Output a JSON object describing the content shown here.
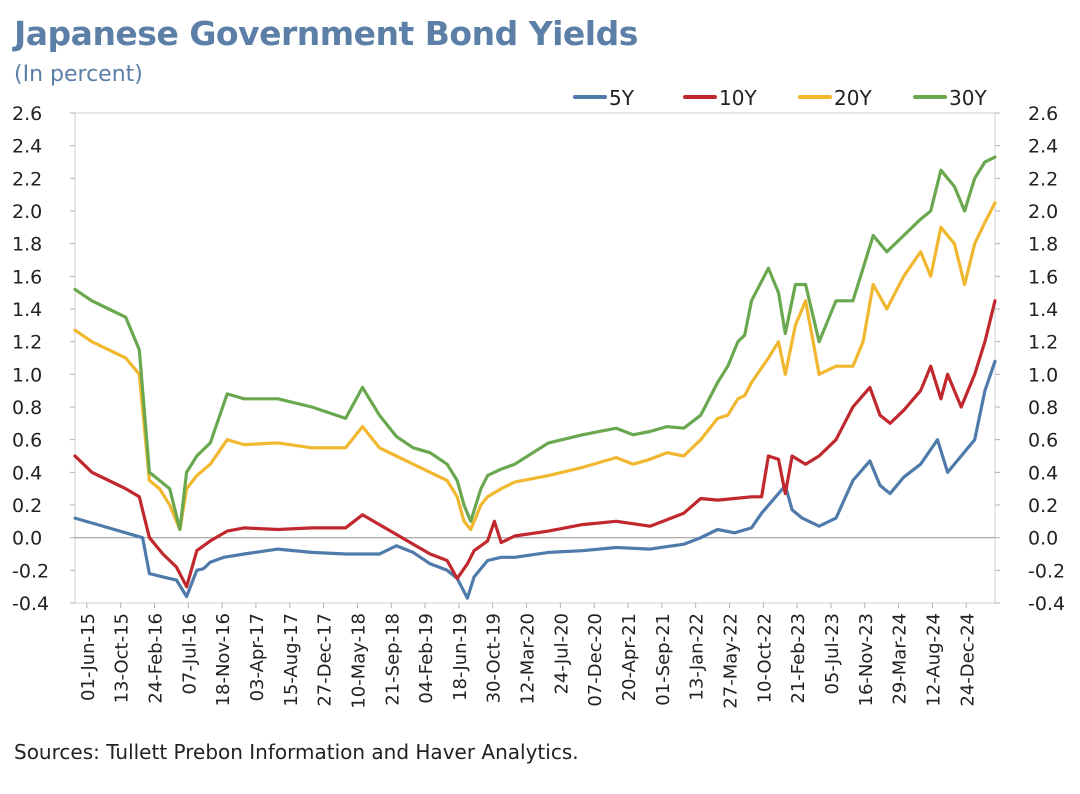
{
  "header": {
    "title": "Japanese Government Bond Yields",
    "subtitle": "(In percent)"
  },
  "footer": {
    "source": "Sources: Tullett Prebon Information and Haver Analytics."
  },
  "chart_data": {
    "type": "line",
    "title": "Japanese Government Bond Yields",
    "subtitle": "(In percent)",
    "xlabel": "",
    "ylabel": "",
    "ylim": [
      -0.4,
      2.6
    ],
    "yticks": [
      -0.4,
      -0.2,
      0.0,
      0.2,
      0.4,
      0.6,
      0.8,
      1.0,
      1.2,
      1.4,
      1.6,
      1.8,
      2.0,
      2.2,
      2.4,
      2.6
    ],
    "ytick_labels": [
      "-0.4",
      "-0.2",
      "0.0",
      "0.2",
      "0.4",
      "0.6",
      "0.8",
      "1.0",
      "1.2",
      "1.4",
      "1.6",
      "1.8",
      "2.0",
      "2.2",
      "2.4",
      "2.6"
    ],
    "x_tick_labels": [
      "01-Jun-15",
      "13-Oct-15",
      "24-Feb-16",
      "07-Jul-16",
      "18-Nov-16",
      "03-Apr-17",
      "15-Aug-17",
      "27-Dec-17",
      "10-May-18",
      "21-Sep-18",
      "04-Feb-19",
      "18-Jun-19",
      "30-Oct-19",
      "12-Mar-20",
      "24-Jul-20",
      "07-Dec-20",
      "20-Apr-21",
      "01-Sep-21",
      "13-Jan-22",
      "27-May-22",
      "10-Oct-22",
      "21-Feb-23",
      "05-Jul-23",
      "16-Nov-23",
      "29-Mar-24",
      "12-Aug-24",
      "24-Dec-24"
    ],
    "x_range": [
      0,
      27.2
    ],
    "legend_position": "top-right",
    "grid": false,
    "series": [
      {
        "name": "5Y",
        "color": "#4f7bab",
        "x": [
          0,
          0.5,
          1,
          1.5,
          2,
          2.2,
          2.6,
          3,
          3.3,
          3.6,
          3.8,
          4,
          4.4,
          5,
          6,
          7,
          8,
          9,
          9.5,
          10,
          10.5,
          11,
          11.3,
          11.6,
          11.8,
          12.2,
          12.6,
          13,
          14,
          15,
          16,
          17,
          18,
          18.5,
          19,
          19.5,
          20,
          20.3,
          20.8,
          21,
          21.2,
          21.5,
          22,
          22.5,
          23,
          23.5,
          23.8,
          24.1,
          24.5,
          25,
          25.5,
          25.8,
          26.2,
          26.6,
          26.9,
          27.2
        ],
        "values": [
          0.12,
          0.09,
          0.06,
          0.03,
          0.0,
          -0.22,
          -0.24,
          -0.26,
          -0.36,
          -0.2,
          -0.19,
          -0.15,
          -0.12,
          -0.1,
          -0.07,
          -0.09,
          -0.1,
          -0.1,
          -0.05,
          -0.09,
          -0.16,
          -0.2,
          -0.25,
          -0.37,
          -0.24,
          -0.14,
          -0.12,
          -0.12,
          -0.09,
          -0.08,
          -0.06,
          -0.07,
          -0.04,
          0.0,
          0.05,
          0.03,
          0.06,
          0.15,
          0.27,
          0.32,
          0.17,
          0.12,
          0.07,
          0.12,
          0.35,
          0.47,
          0.32,
          0.27,
          0.37,
          0.45,
          0.6,
          0.4,
          0.5,
          0.6,
          0.9,
          1.08
        ]
      },
      {
        "name": "10Y",
        "color": "#c0282d",
        "x": [
          0,
          0.5,
          1,
          1.5,
          1.9,
          2.2,
          2.6,
          3,
          3.3,
          3.6,
          3.8,
          4,
          4.5,
          5,
          6,
          7,
          8,
          8.5,
          9,
          9.5,
          10,
          10.5,
          11,
          11.3,
          11.6,
          11.8,
          12.2,
          12.4,
          12.6,
          13,
          14,
          15,
          16,
          17,
          18,
          18.5,
          19,
          19.5,
          20,
          20.3,
          20.5,
          20.8,
          21,
          21.2,
          21.6,
          22,
          22.5,
          23,
          23.5,
          23.8,
          24.1,
          24.5,
          25,
          25.3,
          25.6,
          25.8,
          26.2,
          26.6,
          26.9,
          27.2
        ],
        "values": [
          0.5,
          0.4,
          0.35,
          0.3,
          0.25,
          0.0,
          -0.1,
          -0.18,
          -0.3,
          -0.08,
          -0.05,
          -0.02,
          0.04,
          0.06,
          0.05,
          0.06,
          0.06,
          0.14,
          0.08,
          0.02,
          -0.04,
          -0.1,
          -0.14,
          -0.25,
          -0.16,
          -0.08,
          -0.02,
          0.1,
          -0.03,
          0.01,
          0.04,
          0.08,
          0.1,
          0.07,
          0.15,
          0.24,
          0.23,
          0.24,
          0.25,
          0.25,
          0.5,
          0.48,
          0.27,
          0.5,
          0.45,
          0.5,
          0.6,
          0.8,
          0.92,
          0.75,
          0.7,
          0.78,
          0.9,
          1.05,
          0.85,
          1.0,
          0.8,
          1.0,
          1.2,
          1.45
        ]
      },
      {
        "name": "20Y",
        "color": "#f0b72f",
        "x": [
          0,
          0.5,
          1,
          1.5,
          1.9,
          2.2,
          2.5,
          2.8,
          3.1,
          3.3,
          3.6,
          4,
          4.5,
          5,
          6,
          7,
          8,
          8.5,
          9,
          9.5,
          10,
          10.5,
          11,
          11.3,
          11.5,
          11.7,
          12,
          12.2,
          12.6,
          13,
          14,
          15,
          16,
          16.5,
          17,
          17.5,
          18,
          18.5,
          19,
          19.3,
          19.6,
          19.8,
          20,
          20.5,
          20.8,
          21,
          21.3,
          21.6,
          22,
          22.5,
          23,
          23.3,
          23.6,
          24,
          24.5,
          25,
          25.3,
          25.6,
          26,
          26.3,
          26.6,
          26.9,
          27.2
        ],
        "values": [
          1.27,
          1.2,
          1.15,
          1.1,
          1.0,
          0.35,
          0.3,
          0.2,
          0.05,
          0.3,
          0.38,
          0.45,
          0.6,
          0.57,
          0.58,
          0.55,
          0.55,
          0.68,
          0.55,
          0.5,
          0.45,
          0.4,
          0.35,
          0.25,
          0.1,
          0.05,
          0.2,
          0.25,
          0.3,
          0.34,
          0.38,
          0.43,
          0.49,
          0.45,
          0.48,
          0.52,
          0.5,
          0.6,
          0.73,
          0.75,
          0.85,
          0.87,
          0.95,
          1.1,
          1.2,
          1.0,
          1.3,
          1.45,
          1.0,
          1.05,
          1.05,
          1.2,
          1.55,
          1.4,
          1.6,
          1.75,
          1.6,
          1.9,
          1.8,
          1.55,
          1.8,
          1.93,
          2.05
        ]
      },
      {
        "name": "30Y",
        "color": "#6aa84f",
        "x": [
          0,
          0.5,
          1,
          1.5,
          1.9,
          2.2,
          2.5,
          2.8,
          3.1,
          3.3,
          3.6,
          4,
          4.5,
          5,
          6,
          7,
          8,
          8.5,
          9,
          9.5,
          10,
          10.5,
          11,
          11.3,
          11.5,
          11.7,
          12,
          12.2,
          12.6,
          13,
          14,
          15,
          16,
          16.5,
          17,
          17.5,
          18,
          18.5,
          19,
          19.3,
          19.6,
          19.8,
          20,
          20.5,
          20.8,
          21,
          21.3,
          21.6,
          22,
          22.5,
          23,
          23.3,
          23.6,
          24,
          24.5,
          25,
          25.3,
          25.6,
          26,
          26.3,
          26.6,
          26.9,
          27.2
        ],
        "values": [
          1.52,
          1.45,
          1.4,
          1.35,
          1.15,
          0.4,
          0.35,
          0.3,
          0.05,
          0.4,
          0.5,
          0.58,
          0.88,
          0.85,
          0.85,
          0.8,
          0.73,
          0.92,
          0.75,
          0.62,
          0.55,
          0.52,
          0.45,
          0.35,
          0.2,
          0.1,
          0.3,
          0.38,
          0.42,
          0.45,
          0.58,
          0.63,
          0.67,
          0.63,
          0.65,
          0.68,
          0.67,
          0.75,
          0.95,
          1.05,
          1.2,
          1.24,
          1.45,
          1.65,
          1.5,
          1.25,
          1.55,
          1.55,
          1.2,
          1.45,
          1.45,
          1.65,
          1.85,
          1.75,
          1.85,
          1.95,
          2.0,
          2.25,
          2.15,
          2.0,
          2.2,
          2.3,
          2.33
        ]
      }
    ]
  }
}
